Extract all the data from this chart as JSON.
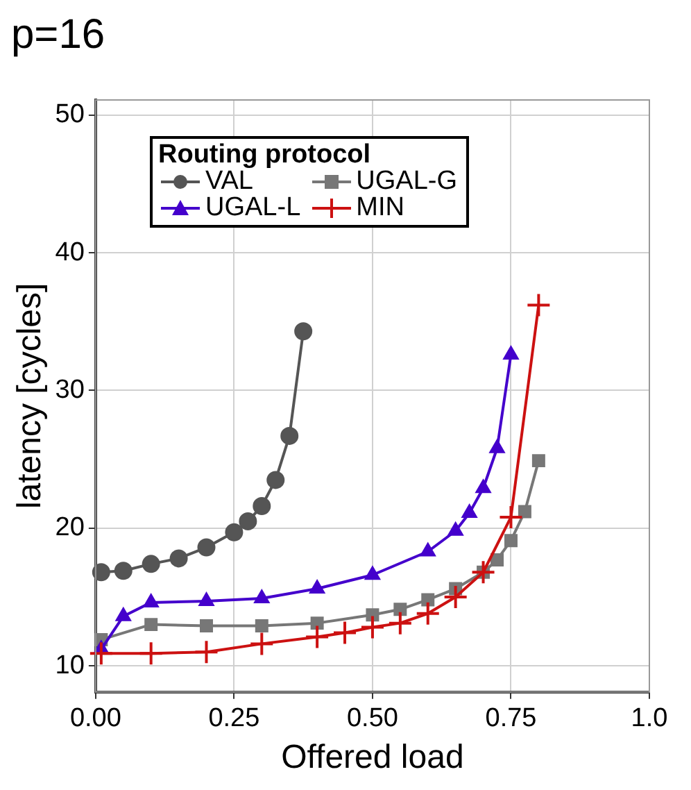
{
  "chart_data": {
    "type": "line",
    "title": "p=16",
    "xlabel": "Offered load",
    "ylabel": "latency [cycles]",
    "legend_title": "Routing protocol",
    "legend": "top left",
    "grid": true,
    "xlim": [
      0,
      1
    ],
    "xticks": [
      {
        "value": 0,
        "label": "0.00"
      },
      {
        "value": 0.25,
        "label": "0.25"
      },
      {
        "value": 0.5,
        "label": "0.50"
      },
      {
        "value": 0.75,
        "label": "0.75"
      },
      {
        "value": 1,
        "label": "1.0"
      }
    ],
    "ylim": [
      8.1,
      51.1
    ],
    "yticks": [
      10,
      20,
      30,
      40,
      50
    ],
    "series": [
      {
        "name": "VAL",
        "color": "#555555",
        "marker": "circle",
        "x": [
          0.01,
          0.05,
          0.1,
          0.15,
          0.2,
          0.25,
          0.275,
          0.3,
          0.325,
          0.35,
          0.375
        ],
        "values": [
          16.8,
          16.9,
          17.4,
          17.8,
          18.6,
          19.7,
          20.5,
          21.6,
          23.5,
          26.7,
          34.3
        ]
      },
      {
        "name": "UGAL-G",
        "color": "#777777",
        "marker": "square",
        "x": [
          0.01,
          0.1,
          0.2,
          0.3,
          0.4,
          0.5,
          0.55,
          0.6,
          0.65,
          0.7,
          0.725,
          0.75,
          0.775,
          0.8
        ],
        "values": [
          11.9,
          13.0,
          12.9,
          12.9,
          13.1,
          13.7,
          14.1,
          14.8,
          15.6,
          16.8,
          17.7,
          19.1,
          21.2,
          24.9
        ]
      },
      {
        "name": "UGAL-L",
        "color": "#4400cc",
        "marker": "triangle",
        "x": [
          0.01,
          0.05,
          0.1,
          0.2,
          0.3,
          0.4,
          0.5,
          0.6,
          0.65,
          0.675,
          0.7,
          0.725,
          0.75
        ],
        "values": [
          11.2,
          13.6,
          14.6,
          14.7,
          14.9,
          15.6,
          16.6,
          18.3,
          19.8,
          21.1,
          22.9,
          25.8,
          32.6
        ]
      },
      {
        "name": "MIN",
        "color": "#cc1111",
        "marker": "cross",
        "x": [
          0.01,
          0.1,
          0.2,
          0.3,
          0.4,
          0.45,
          0.5,
          0.55,
          0.6,
          0.65,
          0.7,
          0.75,
          0.8
        ],
        "values": [
          10.9,
          10.9,
          11.0,
          11.6,
          12.1,
          12.4,
          12.8,
          13.1,
          13.8,
          15.0,
          16.8,
          20.8,
          36.2
        ]
      }
    ]
  }
}
